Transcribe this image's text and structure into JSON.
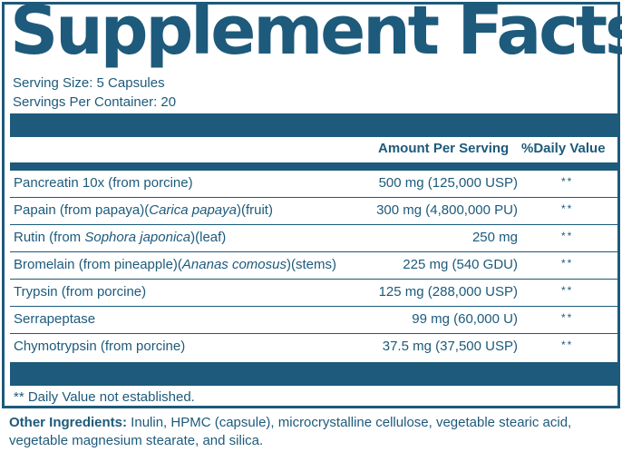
{
  "title": "Supplement Facts",
  "serving_size": "Serving Size: 5 Capsules",
  "servings_per_container": "Servings Per Container: 20",
  "header": {
    "amount_per_serving": "Amount Per Serving",
    "daily_value": "%Daily Value"
  },
  "rows": [
    {
      "pre": "Pancreatin 10x (from porcine)",
      "italic": "",
      "post": "",
      "amount": "500 mg (125,000 USP)",
      "dv": "**"
    },
    {
      "pre": "Papain (from papaya)(",
      "italic": "Carica papaya",
      "post": ")(fruit)",
      "amount": "300 mg (4,800,000 PU)",
      "dv": "**"
    },
    {
      "pre": "Rutin (from ",
      "italic": "Sophora japonica",
      "post": ")(leaf)",
      "amount": "250 mg",
      "dv": "**"
    },
    {
      "pre": "Bromelain (from pineapple)(",
      "italic": "Ananas comosus",
      "post": ")(stems)",
      "amount": "225 mg (540 GDU)",
      "dv": "**"
    },
    {
      "pre": "Trypsin (from porcine)",
      "italic": "",
      "post": "",
      "amount": "125 mg (288,000 USP)",
      "dv": "**"
    },
    {
      "pre": "Serrapeptase",
      "italic": "",
      "post": "",
      "amount": "99 mg (60,000 U)",
      "dv": "**"
    },
    {
      "pre": "Chymotrypsin (from porcine)",
      "italic": "",
      "post": "",
      "amount": "37.5 mg (37,500 USP)",
      "dv": "**"
    }
  ],
  "footnote": "** Daily Value not established.",
  "other_ingredients": {
    "label": "Other Ingredients:",
    "text": " Inulin, HPMC (capsule), microcrystalline cellulose, vegetable stearic acid, vegetable magnesium stearate, and silica."
  },
  "colors": {
    "brand": "#1d5a7b"
  }
}
